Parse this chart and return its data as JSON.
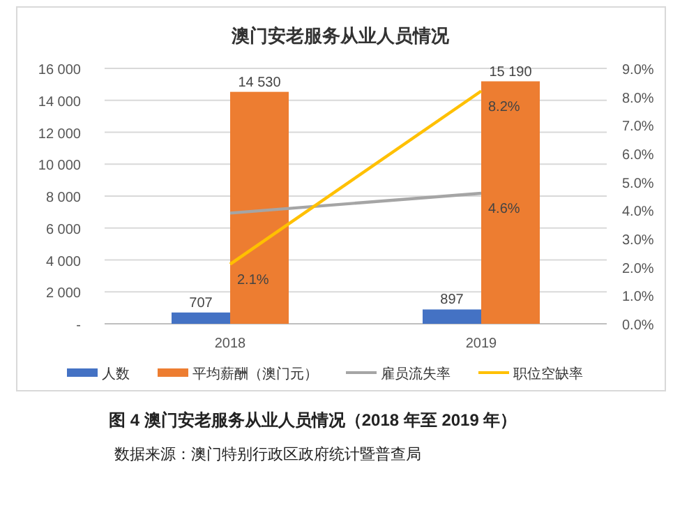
{
  "chart_data": {
    "type": "bar",
    "title": "澳门安老服务从业人员情况",
    "categories": [
      "2018",
      "2019"
    ],
    "series": [
      {
        "name": "人数",
        "color": "#4472c4",
        "values": [
          707,
          897
        ],
        "value_labels": [
          "707",
          "897"
        ]
      },
      {
        "name": "平均薪酬（澳门元）",
        "color": "#ed7d31",
        "values": [
          14530,
          15190
        ],
        "value_labels": [
          "14 530",
          "15 190"
        ]
      },
      {
        "name": "雇员流失率",
        "type": "line",
        "axis": "y2",
        "color": "#a5a5a5",
        "values": [
          3.9,
          4.6
        ],
        "value_labels": [
          null,
          "4.6%"
        ]
      },
      {
        "name": "职位空缺率",
        "type": "line",
        "axis": "y2",
        "color": "#ffc000",
        "values": [
          2.1,
          8.2
        ],
        "value_labels": [
          "2.1%",
          "8.2%"
        ]
      }
    ],
    "ylim": [
      0,
      16000
    ],
    "yticks": [
      {
        "value": 0,
        "label": "-"
      },
      {
        "value": 2000,
        "label": "2 000"
      },
      {
        "value": 4000,
        "label": "4 000"
      },
      {
        "value": 6000,
        "label": "6 000"
      },
      {
        "value": 8000,
        "label": "8 000"
      },
      {
        "value": 10000,
        "label": "10 000"
      },
      {
        "value": 12000,
        "label": "12 000"
      },
      {
        "value": 14000,
        "label": "14 000"
      },
      {
        "value": 16000,
        "label": "16 000"
      }
    ],
    "y2lim": [
      0,
      9
    ],
    "y2ticks": [
      {
        "value": 0,
        "label": "0.0%"
      },
      {
        "value": 1,
        "label": "1.0%"
      },
      {
        "value": 2,
        "label": "2.0%"
      },
      {
        "value": 3,
        "label": "3.0%"
      },
      {
        "value": 4,
        "label": "4.0%"
      },
      {
        "value": 5,
        "label": "5.0%"
      },
      {
        "value": 6,
        "label": "6.0%"
      },
      {
        "value": 7,
        "label": "7.0%"
      },
      {
        "value": 8,
        "label": "8.0%"
      },
      {
        "value": 9,
        "label": "9.0%"
      }
    ],
    "grid": "y",
    "legend": "bottom",
    "marker": "none",
    "line_style": "solid",
    "annotations": [
      "图 4 澳门安老服务从业人员情况（2018 年至 2019 年）",
      "数据来源：澳门特别行政区政府统计暨普查局"
    ]
  }
}
